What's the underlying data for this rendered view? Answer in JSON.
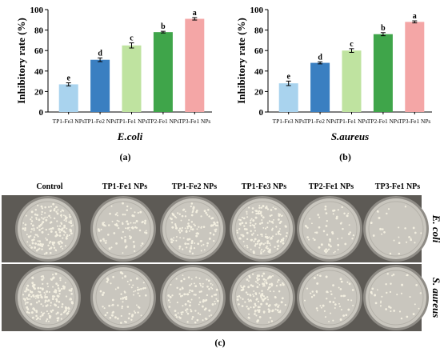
{
  "chart_data": [
    {
      "type": "bar",
      "panel": "(a)",
      "title": "E.coli",
      "ylabel": "Inhibitory rate (%)",
      "ylim": [
        0,
        100
      ],
      "yticks": [
        0,
        20,
        40,
        60,
        80,
        100
      ],
      "categories": [
        "TP1-Fe3 NPs",
        "TP1-Fe2 NPs",
        "TP1-Fe1 NPs",
        "TP2-Fe1 NPs",
        "TP3-Fe1 NPs"
      ],
      "values": [
        27,
        51,
        65,
        78,
        91
      ],
      "errors": [
        1.5,
        1.8,
        2.5,
        0.8,
        1.2
      ],
      "letters": [
        "e",
        "d",
        "c",
        "b",
        "a"
      ],
      "colors": [
        "#a9d3ee",
        "#3a7fc1",
        "#bfe3a0",
        "#3fa54a",
        "#f4a6a6"
      ]
    },
    {
      "type": "bar",
      "panel": "(b)",
      "title": "S.aureus",
      "ylabel": "Inhibitory rate (%)",
      "ylim": [
        0,
        100
      ],
      "yticks": [
        0,
        20,
        40,
        60,
        80,
        100
      ],
      "categories": [
        "TP1-Fe3 NPs",
        "TP1-Fe2 NPs",
        "TP1-Fe1 NPs",
        "TP2-Fe1 NPs",
        "TP3-Fe1 NPs"
      ],
      "values": [
        28,
        48,
        60,
        76,
        88
      ],
      "errors": [
        2.2,
        1.0,
        1.8,
        1.5,
        1.0
      ],
      "letters": [
        "e",
        "d",
        "c",
        "b",
        "a"
      ],
      "colors": [
        "#a9d3ee",
        "#3a7fc1",
        "#bfe3a0",
        "#3fa54a",
        "#f4a6a6"
      ]
    }
  ],
  "photos": {
    "panel": "(c)",
    "columns": [
      "Control",
      "TP1-Fe1 NPs",
      "TP1-Fe2 NPs",
      "TP1-Fe3 NPs",
      "TP2-Fe1 NPs",
      "TP3-Fe1 NPs"
    ],
    "rows": [
      "E. coli",
      "S. aureus"
    ],
    "colony_density": [
      [
        1.0,
        0.5,
        0.7,
        0.9,
        0.35,
        0.15
      ],
      [
        1.0,
        0.45,
        0.6,
        0.85,
        0.3,
        0.2
      ]
    ]
  }
}
